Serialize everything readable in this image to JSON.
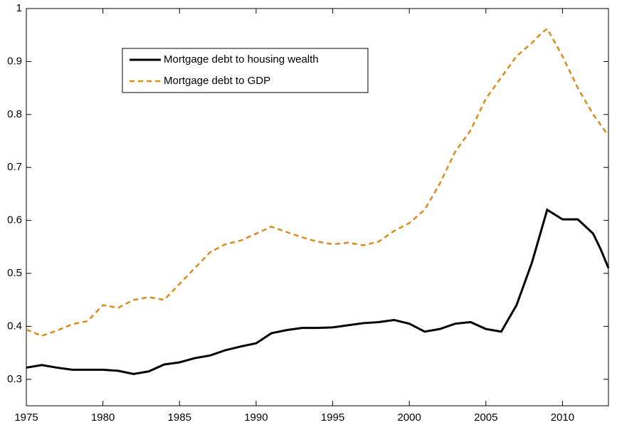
{
  "chart_data": {
    "type": "line",
    "x": [
      1975,
      1976,
      1977,
      1978,
      1979,
      1980,
      1981,
      1982,
      1983,
      1984,
      1985,
      1986,
      1987,
      1988,
      1989,
      1990,
      1991,
      1992,
      1993,
      1994,
      1995,
      1996,
      1997,
      1998,
      1999,
      2000,
      2001,
      2002,
      2003,
      2004,
      2005,
      2006,
      2007,
      2008,
      2008.5,
      2009,
      2010,
      2011,
      2012,
      2012.5,
      2013
    ],
    "series": [
      {
        "name": "Mortgage debt to housing wealth",
        "color": "#000000",
        "dash": false,
        "values": [
          0.322,
          0.327,
          0.322,
          0.318,
          0.318,
          0.318,
          0.316,
          0.31,
          0.315,
          0.328,
          0.332,
          0.34,
          0.345,
          0.355,
          0.362,
          0.368,
          0.387,
          0.393,
          0.397,
          0.397,
          0.398,
          0.402,
          0.406,
          0.408,
          0.412,
          0.405,
          0.39,
          0.395,
          0.405,
          0.408,
          0.395,
          0.39,
          0.44,
          0.52,
          0.57,
          0.62,
          0.602,
          0.602,
          0.575,
          0.545,
          0.51
        ]
      },
      {
        "name": "Mortgage debt to GDP",
        "color": "#d98c1a",
        "dash": true,
        "values": [
          0.394,
          0.382,
          0.392,
          0.404,
          0.41,
          0.44,
          0.435,
          0.45,
          0.455,
          0.45,
          0.48,
          0.51,
          0.54,
          0.555,
          0.562,
          0.575,
          0.588,
          0.578,
          0.568,
          0.56,
          0.555,
          0.558,
          0.553,
          0.56,
          0.58,
          0.595,
          0.62,
          0.67,
          0.73,
          0.77,
          0.83,
          0.87,
          0.91,
          0.935,
          0.95,
          0.962,
          0.91,
          0.85,
          0.8,
          0.78,
          0.76
        ]
      }
    ],
    "xlim": [
      1975,
      2013
    ],
    "xticks": [
      1975,
      1980,
      1985,
      1990,
      1995,
      2000,
      2005,
      2010
    ],
    "ylim": [
      0.25,
      1
    ],
    "yticks": [
      0.3,
      0.4,
      0.5,
      0.6,
      0.7,
      0.8,
      0.9,
      1
    ]
  }
}
